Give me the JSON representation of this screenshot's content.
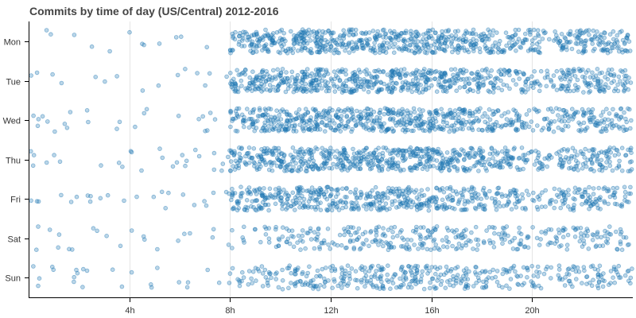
{
  "chart_data": {
    "type": "scatter",
    "title": "Commits by time of day (US/Central) 2012-2016",
    "xlabel": "",
    "ylabel": "",
    "xlim": [
      0,
      24
    ],
    "y_categories": [
      "Mon",
      "Tue",
      "Wed",
      "Thu",
      "Fri",
      "Sat",
      "Sun"
    ],
    "x_ticks": [
      {
        "value": 4,
        "label": "4h"
      },
      {
        "value": 8,
        "label": "8h"
      },
      {
        "value": 12,
        "label": "12h"
      },
      {
        "value": 16,
        "label": "16h"
      },
      {
        "value": 20,
        "label": "20h"
      }
    ],
    "grid": true,
    "point_color": "#1f77b4",
    "point_alpha": 0.3,
    "jitter": 0.3,
    "seed": 20160131,
    "hourly_commit_counts": {
      "Mon": [
        2,
        1,
        1,
        1,
        3,
        2,
        1,
        1,
        40,
        50,
        58,
        58,
        50,
        52,
        54,
        54,
        52,
        48,
        40,
        36,
        25,
        42,
        46,
        34
      ],
      "Tue": [
        3,
        1,
        1,
        2,
        1,
        2,
        2,
        3,
        44,
        52,
        56,
        58,
        52,
        54,
        56,
        56,
        50,
        46,
        36,
        32,
        22,
        40,
        44,
        34
      ],
      "Wed": [
        5,
        4,
        2,
        2,
        3,
        1,
        2,
        4,
        40,
        48,
        56,
        58,
        50,
        54,
        56,
        56,
        52,
        46,
        36,
        32,
        24,
        34,
        40,
        30
      ],
      "Thu": [
        4,
        2,
        1,
        2,
        3,
        4,
        5,
        6,
        42,
        50,
        54,
        58,
        52,
        56,
        58,
        60,
        56,
        48,
        40,
        34,
        22,
        36,
        42,
        32
      ],
      "Fri": [
        3,
        3,
        4,
        2,
        2,
        3,
        3,
        4,
        40,
        46,
        50,
        50,
        42,
        46,
        46,
        48,
        42,
        38,
        30,
        28,
        20,
        34,
        36,
        26
      ],
      "Sat": [
        3,
        4,
        2,
        2,
        3,
        2,
        2,
        3,
        8,
        14,
        20,
        22,
        22,
        26,
        28,
        30,
        26,
        24,
        22,
        20,
        16,
        22,
        24,
        18
      ],
      "Sun": [
        5,
        4,
        3,
        2,
        3,
        2,
        2,
        3,
        14,
        20,
        26,
        28,
        30,
        34,
        36,
        36,
        32,
        28,
        24,
        22,
        16,
        24,
        26,
        20
      ]
    }
  }
}
